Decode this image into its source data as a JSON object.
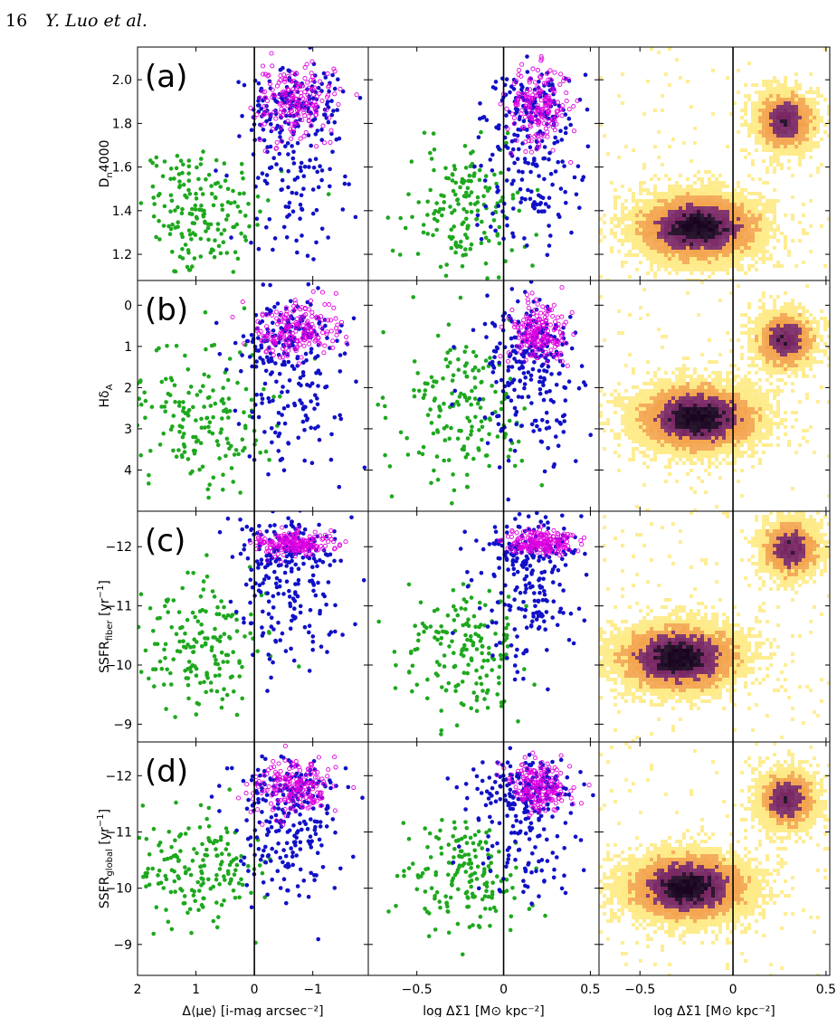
{
  "page": {
    "number": "16",
    "running_head": "Y. Luo et al."
  },
  "figure": {
    "rows": [
      {
        "label": "(a)",
        "ylabel": "Dₙ4000",
        "ytick_values": [
          1.2,
          1.4,
          1.6,
          1.8,
          2.0
        ],
        "ytick_labels": [
          "1.2",
          "1.4",
          "1.6",
          "1.8",
          "2.0"
        ],
        "ylim": [
          1.08,
          2.15
        ]
      },
      {
        "label": "(b)",
        "ylabel": "HδA",
        "ytick_values": [
          0,
          1,
          2,
          3,
          4
        ],
        "ytick_labels": [
          "0",
          "1",
          "2",
          "3",
          "4"
        ],
        "ylim": [
          -0.6,
          5.0
        ],
        "inverted": true
      },
      {
        "label": "(c)",
        "ylabel": "SSFRfiber [yr⁻¹]",
        "ytick_values": [
          -12,
          -11,
          -10,
          -9
        ],
        "ytick_labels": [
          "−12",
          "−11",
          "−10",
          "−9"
        ],
        "ylim": [
          -12.6,
          -8.7
        ],
        "inverted": true
      },
      {
        "label": "(d)",
        "ylabel": "SSFRglobal [yr⁻¹]",
        "ytick_values": [
          -12,
          -11,
          -10,
          -9
        ],
        "ytick_labels": [
          "−12",
          "−11",
          "−10",
          "−9"
        ],
        "ylim": [
          -12.6,
          -8.45
        ],
        "inverted": true
      }
    ],
    "columns": [
      {
        "xlabel": "Δ⟨μe⟩ [i-mag arcsec⁻²]",
        "xtick_values": [
          2,
          1,
          0,
          -1
        ],
        "xtick_labels": [
          "2",
          "1",
          "0",
          "−1"
        ],
        "xlim": [
          2.0,
          -1.95
        ]
      },
      {
        "xlabel": "log ΔΣ1 [M⊙ kpc⁻²]",
        "xtick_values": [
          -0.5,
          0,
          0.5
        ],
        "xtick_labels": [
          "−0.5",
          "0",
          "0.5"
        ],
        "xlim": [
          -0.78,
          0.55
        ]
      },
      {
        "xlabel": "log ΔΣ1 [M⊙ kpc⁻²]",
        "xtick_values": [
          -0.5,
          0,
          0.5
        ],
        "xtick_labels": [
          "−0.5",
          "0",
          "0.5"
        ],
        "xlim": [
          -0.72,
          0.52
        ]
      }
    ],
    "vertical_reference_line": {
      "value": 0
    },
    "colors": {
      "green_points": "#1ea81e",
      "blue_points": "#1010c8",
      "magenta_points": "#e000e0",
      "density_low": "#fde04a",
      "density_mid": "#f08a1a",
      "density_high": "#6a0f52",
      "density_peak": "#1a0520"
    }
  },
  "chart_data": [
    {
      "type": "scatter",
      "panels": "rows (a)-(d), left column: x = Δ⟨μe⟩",
      "series_colors": [
        "green",
        "blue",
        "magenta open circles"
      ],
      "clusters": {
        "green": {
          "x_center": 0.95,
          "x_spread": 0.55,
          "y_centers": [
            1.4,
            2.7,
            -10.3,
            -10.3
          ]
        },
        "blue": {
          "x_center": -0.6,
          "x_spread": 0.45,
          "y_centers": [
            1.6,
            2.0,
            -11.2,
            -10.9
          ]
        },
        "magenta": {
          "x_center": -0.7,
          "x_spread": 0.35,
          "y_centers": [
            1.9,
            0.6,
            -12.05,
            -11.8
          ]
        }
      }
    },
    {
      "type": "scatter",
      "panels": "rows (a)-(d), middle column: x = log ΔΣ1",
      "clusters": {
        "green": {
          "x_center": -0.22,
          "x_spread": 0.17,
          "y_centers": [
            1.4,
            2.6,
            -10.3,
            -10.2
          ]
        },
        "blue": {
          "x_center": 0.15,
          "x_spread": 0.14,
          "y_centers": [
            1.6,
            2.1,
            -11.2,
            -11.0
          ]
        },
        "magenta": {
          "x_center": 0.2,
          "x_spread": 0.09,
          "y_centers": [
            1.88,
            0.7,
            -12.05,
            -11.85
          ]
        }
      }
    },
    {
      "type": "heatmap",
      "panels": "rows (a)-(d), right column: density of log ΔΣ1",
      "peaks": [
        {
          "row": "a",
          "x": -0.2,
          "y": 1.33,
          "x2": 0.27,
          "y2": 1.82
        },
        {
          "row": "b",
          "x": -0.2,
          "y": 2.7,
          "x2": 0.27,
          "y2": 0.8
        },
        {
          "row": "c",
          "x": -0.3,
          "y": -10.15,
          "x2": 0.3,
          "y2": -12.0
        },
        {
          "row": "d",
          "x": -0.25,
          "y": -10.05,
          "x2": 0.28,
          "y2": -11.6
        }
      ]
    }
  ]
}
